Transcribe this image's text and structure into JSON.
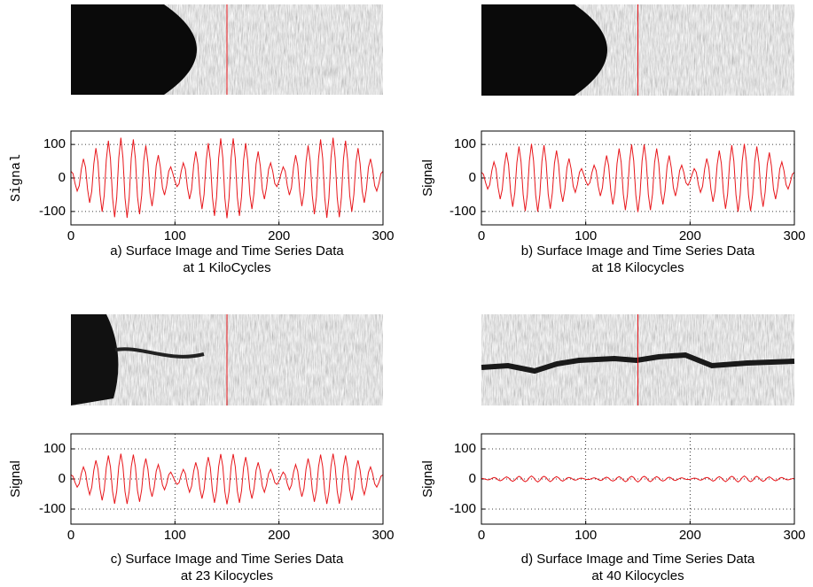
{
  "chart_data": [
    {
      "type": "line",
      "caption": [
        "a) Surface Image and Time Series Data",
        "at 1 KiloCycles"
      ],
      "ylabel": "Signal",
      "xlim": [
        0,
        300
      ],
      "ylim": [
        -140,
        140
      ],
      "xticks": [
        0,
        100,
        200,
        300
      ],
      "yticks": [
        -100,
        0,
        100
      ],
      "grid": true,
      "x": [
        0,
        2,
        4,
        6,
        8,
        10,
        12,
        14,
        16,
        18,
        20,
        22,
        24,
        26,
        28,
        30,
        32,
        34,
        36,
        38,
        40,
        42,
        44,
        46,
        48,
        50,
        52,
        54,
        56,
        58,
        60,
        62,
        64,
        66,
        68,
        70,
        72,
        74,
        76,
        78,
        80,
        82,
        84,
        86,
        88,
        90,
        92,
        94,
        96,
        98,
        100,
        102,
        104,
        106,
        108,
        110,
        112,
        114,
        116,
        118,
        120,
        122,
        124,
        126,
        128,
        130,
        132,
        134,
        136,
        138,
        140,
        142,
        144,
        146,
        148,
        150,
        152,
        154,
        156,
        158,
        160,
        162,
        164,
        166,
        168,
        170,
        172,
        174,
        176,
        178,
        180,
        182,
        184,
        186,
        188,
        190,
        192,
        194,
        196,
        198,
        200,
        202,
        204,
        206,
        208,
        210,
        212,
        214,
        216,
        218,
        220,
        222,
        224,
        226,
        228,
        230,
        232,
        234,
        236,
        238,
        240,
        242,
        244,
        246,
        248,
        250,
        252,
        254,
        256,
        258,
        260,
        262,
        264,
        266,
        268,
        270,
        272,
        274,
        276,
        278,
        280,
        282,
        284,
        286,
        288,
        290,
        292,
        294,
        296,
        298,
        300
      ],
      "series": [
        {
          "color": "#e8161b",
          "values": [
            20,
            13,
            -17,
            -39,
            -23,
            26,
            57,
            32,
            -34,
            -74,
            -40,
            42,
            89,
            47,
            -49,
            -101,
            -52,
            54,
            111,
            57,
            -58,
            -117,
            -59,
            60,
            120,
            60,
            -60,
            -119,
            -59,
            59,
            115,
            57,
            -56,
            -108,
            -52,
            51,
            97,
            47,
            -45,
            -84,
            -40,
            37,
            68,
            32,
            -29,
            -51,
            -23,
            20,
            33,
            13,
            -10,
            -26,
            -17,
            20,
            45,
            26,
            -29,
            -63,
            -34,
            37,
            79,
            42,
            -45,
            -93,
            -49,
            51,
            104,
            54,
            -56,
            -113,
            -58,
            59,
            118,
            60,
            -60,
            -120,
            -60,
            60,
            118,
            59,
            -58,
            -113,
            -56,
            54,
            104,
            51,
            -49,
            -93,
            -45,
            42,
            79,
            37,
            -34,
            -63,
            -29,
            26,
            45,
            20,
            -17,
            -26,
            -10,
            13,
            33,
            20,
            -23,
            -51,
            -29,
            32,
            68,
            37,
            -40,
            -84,
            -45,
            47,
            97,
            51,
            -52,
            -108,
            -56,
            57,
            115,
            59,
            -59,
            -119,
            -60,
            60,
            120,
            60,
            -59,
            -117,
            -58,
            57,
            111,
            54,
            -52,
            -101,
            -49,
            47,
            89,
            42,
            -40,
            -74,
            -34,
            32,
            57,
            26,
            -23,
            -39,
            -17,
            13,
            20
          ]
        }
      ]
    },
    {
      "type": "line",
      "caption": [
        "b) Surface Image and Time Series Data",
        "at 18 Kilocycles"
      ],
      "ylabel": "Signal",
      "xlim": [
        0,
        300
      ],
      "ylim": [
        -140,
        140
      ],
      "xticks": [
        0,
        100,
        200,
        300
      ],
      "yticks": [
        -100,
        0,
        100
      ],
      "grid": true,
      "x": [
        0,
        2,
        4,
        6,
        8,
        10,
        12,
        14,
        16,
        18,
        20,
        22,
        24,
        26,
        28,
        30,
        32,
        34,
        36,
        38,
        40,
        42,
        44,
        46,
        48,
        50,
        52,
        54,
        56,
        58,
        60,
        62,
        64,
        66,
        68,
        70,
        72,
        74,
        76,
        78,
        80,
        82,
        84,
        86,
        88,
        90,
        92,
        94,
        96,
        98,
        100,
        102,
        104,
        106,
        108,
        110,
        112,
        114,
        116,
        118,
        120,
        122,
        124,
        126,
        128,
        130,
        132,
        134,
        136,
        138,
        140,
        142,
        144,
        146,
        148,
        150,
        152,
        154,
        156,
        158,
        160,
        162,
        164,
        166,
        168,
        170,
        172,
        174,
        176,
        178,
        180,
        182,
        184,
        186,
        188,
        190,
        192,
        194,
        196,
        198,
        200,
        202,
        204,
        206,
        208,
        210,
        212,
        214,
        216,
        218,
        220,
        222,
        224,
        226,
        228,
        230,
        232,
        234,
        236,
        238,
        240,
        242,
        244,
        246,
        248,
        250,
        252,
        254,
        256,
        258,
        260,
        262,
        264,
        266,
        268,
        270,
        272,
        274,
        276,
        278,
        280,
        282,
        284,
        286,
        288,
        290,
        292,
        294,
        296,
        298,
        300
      ],
      "series": [
        {
          "color": "#e8161b",
          "values": [
            17,
            11,
            -14,
            -33,
            -20,
            22,
            48,
            27,
            -29,
            -63,
            -34,
            36,
            76,
            40,
            -42,
            -86,
            -44,
            46,
            94,
            48,
            -49,
            -99,
            -50,
            51,
            102,
            51,
            -51,
            -101,
            -50,
            50,
            98,
            48,
            -48,
            -92,
            -44,
            43,
            82,
            40,
            -38,
            -71,
            -34,
            31,
            58,
            27,
            -25,
            -43,
            -20,
            17,
            28,
            11,
            -9,
            -22,
            -14,
            17,
            38,
            22,
            -25,
            -54,
            -29,
            31,
            67,
            36,
            -38,
            -79,
            -42,
            43,
            88,
            46,
            -48,
            -96,
            -49,
            50,
            100,
            51,
            -51,
            -102,
            -51,
            51,
            100,
            50,
            -49,
            -96,
            -48,
            46,
            88,
            43,
            -42,
            -79,
            -38,
            36,
            67,
            31,
            -29,
            -54,
            -25,
            22,
            38,
            17,
            -14,
            -22,
            -9,
            11,
            28,
            17,
            -20,
            -43,
            -25,
            27,
            58,
            31,
            -34,
            -71,
            -38,
            40,
            82,
            43,
            -44,
            -92,
            -48,
            48,
            98,
            50,
            -50,
            -101,
            -51,
            51,
            102,
            51,
            -50,
            -99,
            -49,
            48,
            94,
            46,
            -44,
            -86,
            -42,
            40,
            76,
            36,
            -34,
            -63,
            -29,
            27,
            48,
            22,
            -20,
            -33,
            -14,
            11,
            17
          ]
        }
      ]
    },
    {
      "type": "line",
      "caption": [
        "c) Surface Image and Time Series Data",
        "at 23 Kilocycles"
      ],
      "ylabel": "Signal",
      "xlim": [
        0,
        300
      ],
      "ylim": [
        -150,
        150
      ],
      "xticks": [
        0,
        100,
        200,
        300
      ],
      "yticks": [
        -100,
        0,
        100
      ],
      "grid": true,
      "x": [
        0,
        2,
        4,
        6,
        8,
        10,
        12,
        14,
        16,
        18,
        20,
        22,
        24,
        26,
        28,
        30,
        32,
        34,
        36,
        38,
        40,
        42,
        44,
        46,
        48,
        50,
        52,
        54,
        56,
        58,
        60,
        62,
        64,
        66,
        68,
        70,
        72,
        74,
        76,
        78,
        80,
        82,
        84,
        86,
        88,
        90,
        92,
        94,
        96,
        98,
        100,
        102,
        104,
        106,
        108,
        110,
        112,
        114,
        116,
        118,
        120,
        122,
        124,
        126,
        128,
        130,
        132,
        134,
        136,
        138,
        140,
        142,
        144,
        146,
        148,
        150,
        152,
        154,
        156,
        158,
        160,
        162,
        164,
        166,
        168,
        170,
        172,
        174,
        176,
        178,
        180,
        182,
        184,
        186,
        188,
        190,
        192,
        194,
        196,
        198,
        200,
        202,
        204,
        206,
        208,
        210,
        212,
        214,
        216,
        218,
        220,
        222,
        224,
        226,
        228,
        230,
        232,
        234,
        236,
        238,
        240,
        242,
        244,
        246,
        248,
        250,
        252,
        254,
        256,
        258,
        260,
        262,
        264,
        266,
        268,
        270,
        272,
        274,
        276,
        278,
        280,
        282,
        284,
        286,
        288,
        290,
        292,
        294,
        296,
        298,
        300
      ],
      "series": [
        {
          "color": "#e8161b",
          "values": [
            14,
            9,
            -12,
            -27,
            -16,
            18,
            40,
            22,
            -24,
            -52,
            -28,
            29,
            62,
            33,
            -34,
            -71,
            -36,
            38,
            78,
            40,
            -41,
            -82,
            -41,
            42,
            84,
            42,
            -42,
            -83,
            -41,
            41,
            81,
            40,
            -39,
            -76,
            -36,
            36,
            68,
            33,
            -32,
            -59,
            -28,
            26,
            48,
            22,
            -20,
            -36,
            -16,
            14,
            23,
            9,
            -7,
            -18,
            -12,
            14,
            32,
            18,
            -20,
            -44,
            -24,
            26,
            55,
            29,
            -32,
            -65,
            -34,
            36,
            73,
            38,
            -39,
            -79,
            -41,
            41,
            83,
            42,
            -42,
            -84,
            -42,
            42,
            83,
            41,
            -41,
            -79,
            -39,
            38,
            73,
            36,
            -34,
            -65,
            -32,
            29,
            55,
            26,
            -24,
            -44,
            -20,
            18,
            32,
            14,
            -12,
            -18,
            -7,
            9,
            23,
            14,
            -16,
            -36,
            -20,
            22,
            48,
            26,
            -28,
            -59,
            -32,
            33,
            68,
            36,
            -36,
            -76,
            -39,
            40,
            81,
            41,
            -41,
            -83,
            -42,
            42,
            84,
            42,
            -41,
            -82,
            -41,
            40,
            78,
            38,
            -36,
            -71,
            -34,
            33,
            62,
            29,
            -28,
            -52,
            -24,
            22,
            40,
            18,
            -16,
            -27,
            -12,
            9,
            14
          ]
        }
      ]
    },
    {
      "type": "line",
      "caption": [
        "d) Surface Image and Time Series Data",
        "at 40 Kilocycles"
      ],
      "ylabel": "Signal",
      "xlim": [
        0,
        300
      ],
      "ylim": [
        -150,
        150
      ],
      "xticks": [
        0,
        100,
        200,
        300
      ],
      "yticks": [
        -100,
        0,
        100
      ],
      "grid": true,
      "x": [
        0,
        2,
        4,
        6,
        8,
        10,
        12,
        14,
        16,
        18,
        20,
        22,
        24,
        26,
        28,
        30,
        32,
        34,
        36,
        38,
        40,
        42,
        44,
        46,
        48,
        50,
        52,
        54,
        56,
        58,
        60,
        62,
        64,
        66,
        68,
        70,
        72,
        74,
        76,
        78,
        80,
        82,
        84,
        86,
        88,
        90,
        92,
        94,
        96,
        98,
        100,
        102,
        104,
        106,
        108,
        110,
        112,
        114,
        116,
        118,
        120,
        122,
        124,
        126,
        128,
        130,
        132,
        134,
        136,
        138,
        140,
        142,
        144,
        146,
        148,
        150,
        152,
        154,
        156,
        158,
        160,
        162,
        164,
        166,
        168,
        170,
        172,
        174,
        176,
        178,
        180,
        182,
        184,
        186,
        188,
        190,
        192,
        194,
        196,
        198,
        200,
        202,
        204,
        206,
        208,
        210,
        212,
        214,
        216,
        218,
        220,
        222,
        224,
        226,
        228,
        230,
        232,
        234,
        236,
        238,
        240,
        242,
        244,
        246,
        248,
        250,
        252,
        254,
        256,
        258,
        260,
        262,
        264,
        266,
        268,
        270,
        272,
        274,
        276,
        278,
        280,
        282,
        284,
        286,
        288,
        290,
        292,
        294,
        296,
        298,
        300
      ],
      "series": [
        {
          "color": "#e8161b",
          "values": [
            2,
            1,
            -1,
            -3,
            -2,
            2,
            5,
            3,
            -3,
            -6,
            -3,
            3,
            7,
            4,
            -4,
            -8,
            -4,
            4,
            9,
            5,
            -5,
            -9,
            -5,
            5,
            10,
            5,
            -5,
            -10,
            -5,
            5,
            9,
            5,
            -4,
            -9,
            -4,
            4,
            8,
            4,
            -4,
            -7,
            -3,
            3,
            5,
            3,
            -2,
            -4,
            -2,
            2,
            3,
            1,
            -1,
            -2,
            -1,
            2,
            4,
            2,
            -2,
            -5,
            -3,
            3,
            6,
            3,
            -4,
            -7,
            -4,
            4,
            8,
            4,
            -4,
            -9,
            -5,
            5,
            9,
            5,
            -5,
            -10,
            -5,
            5,
            9,
            5,
            -5,
            -9,
            -4,
            4,
            8,
            4,
            -4,
            -7,
            -4,
            3,
            6,
            3,
            -3,
            -5,
            -2,
            2,
            4,
            2,
            -1,
            -2,
            -1,
            1,
            3,
            2,
            -2,
            -4,
            -2,
            3,
            5,
            3,
            -3,
            -7,
            -4,
            4,
            8,
            4,
            -4,
            -9,
            -4,
            5,
            9,
            5,
            -5,
            -10,
            -5,
            5,
            10,
            5,
            -5,
            -9,
            -5,
            5,
            9,
            4,
            -4,
            -8,
            -4,
            4,
            7,
            3,
            -3,
            -6,
            -3,
            3,
            5,
            2,
            -2,
            -3,
            -1,
            1,
            2
          ]
        }
      ]
    }
  ]
}
